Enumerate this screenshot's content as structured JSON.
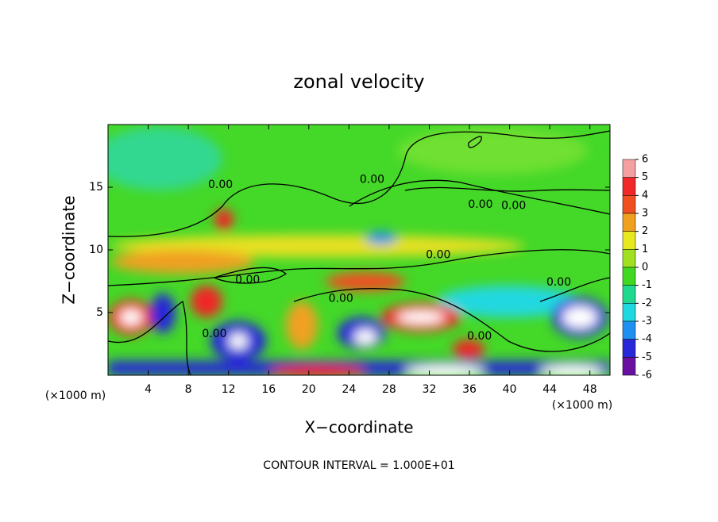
{
  "chart_data": {
    "type": "contour",
    "title": "zonal velocity",
    "xlabel": "X−coordinate",
    "ylabel": "Z−coordinate",
    "x_unit_label": "(×1000 m)",
    "y_unit_label": "(×1000 m)",
    "footer": "CONTOUR INTERVAL = 1.000E+01",
    "xlim": [
      0,
      50
    ],
    "ylim": [
      0,
      20
    ],
    "xticks": [
      4,
      8,
      12,
      16,
      20,
      24,
      28,
      32,
      36,
      40,
      44,
      48
    ],
    "yticks": [
      5,
      10,
      15
    ],
    "colorbar": {
      "ticks": [
        6,
        5,
        4,
        3,
        2,
        1,
        0,
        -1,
        -2,
        -3,
        -4,
        -5,
        -6
      ],
      "colors": [
        "#f5a0a0",
        "#f02828",
        "#f05020",
        "#f0a020",
        "#e8e820",
        "#a0e020",
        "#40d820",
        "#20d890",
        "#20d8e0",
        "#2090f0",
        "#2828d8",
        "#6a10a0"
      ]
    },
    "contour_labels": [
      {
        "value": 0,
        "label": "0.00",
        "x": 11.2,
        "y": 15.2
      },
      {
        "value": 0,
        "label": "0.00",
        "x": 26.3,
        "y": 15.6
      },
      {
        "value": 0,
        "label": "0.00",
        "x": 37.1,
        "y": 13.6
      },
      {
        "value": 0,
        "label": "0.00",
        "x": 40.4,
        "y": 13.5
      },
      {
        "value": 0,
        "label": "0.00",
        "x": 32.9,
        "y": 9.6
      },
      {
        "value": 0,
        "label": "0.00",
        "x": 13.9,
        "y": 7.6
      },
      {
        "value": 0,
        "label": "0.00",
        "x": 23.2,
        "y": 6.1
      },
      {
        "value": 0,
        "label": "0.00",
        "x": 10.6,
        "y": 3.3
      },
      {
        "value": 0,
        "label": "0.00",
        "x": 37.0,
        "y": 3.1
      },
      {
        "value": 0,
        "label": "0.00",
        "x": 44.9,
        "y": 7.4
      }
    ]
  }
}
